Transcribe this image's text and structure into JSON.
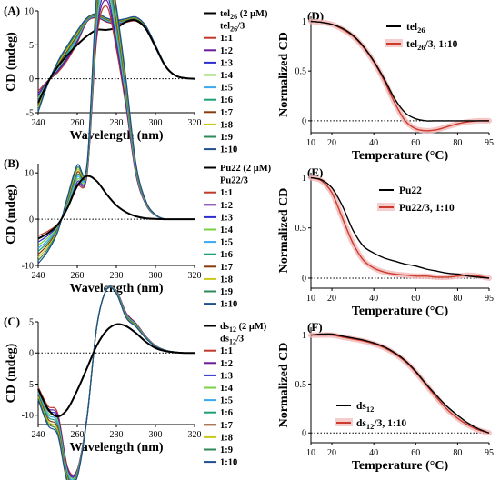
{
  "colors": {
    "black": "#000000",
    "red": "#cc3a2b",
    "pink_band": "#f2b8b8",
    "ratio_palette": [
      "#c0392b",
      "#6a1b9a",
      "#2e2ecf",
      "#7bd146",
      "#3aa9f0",
      "#1fa07a",
      "#8a3b0e",
      "#c8c81a",
      "#2e8b57",
      "#1f4f8f"
    ]
  },
  "chart_data": [
    {
      "panel": "(A)",
      "type": "line",
      "title": "",
      "xlabel": "Wavelength (nm)",
      "ylabel": "CD (mdeg)",
      "xlim": [
        240,
        320
      ],
      "ylim": [
        -5,
        10
      ],
      "xticks": [
        240,
        260,
        280,
        300,
        320
      ],
      "yticks": [
        -5,
        0,
        5,
        10
      ],
      "zero_line": true,
      "legend": {
        "position": "right",
        "main": {
          "base": "tel",
          "sub": "26",
          "tail": " (2 μM)"
        },
        "group": {
          "base": "tel",
          "sub": "26",
          "tail": "/3"
        },
        "ratios": [
          "1:1",
          "1:2",
          "1:3",
          "1:4",
          "1:5",
          "1:6",
          "1:7",
          "1:8",
          "1:9",
          "1:10"
        ]
      },
      "x": [
        240,
        245,
        250,
        255,
        260,
        265,
        270,
        275,
        280,
        285,
        290,
        295,
        300,
        305,
        310,
        315,
        320
      ],
      "series": [
        {
          "name": "tel26 (2 μM)",
          "values": [
            -3.5,
            -0.5,
            1.8,
            3.5,
            5.0,
            6.3,
            7.2,
            7.2,
            7.5,
            8.4,
            8.6,
            7.4,
            4.7,
            1.9,
            0.5,
            0.1,
            0.0
          ]
        }
      ],
      "ratio_ends": {
        "first": [
          -1.8,
          8.4,
          8.5
        ],
        "last": [
          -4.9,
          9.0,
          9.1
        ]
      }
    },
    {
      "panel": "(B)",
      "type": "line",
      "title": "",
      "xlabel": "Wavelength (nm)",
      "ylabel": "CD (mdeg)",
      "xlim": [
        240,
        320
      ],
      "ylim": [
        -10,
        12
      ],
      "xticks": [
        240,
        260,
        280,
        300,
        320
      ],
      "yticks": [
        -10,
        0,
        10
      ],
      "zero_line": true,
      "legend": {
        "position": "right",
        "main": {
          "base": "Pu22",
          "sub": "",
          "tail": " (2 μM)"
        },
        "group": {
          "base": "Pu22",
          "sub": "",
          "tail": "/3"
        },
        "ratios": [
          "1:1",
          "1:2",
          "1:3",
          "1:4",
          "1:5",
          "1:6",
          "1:7",
          "1:8",
          "1:9",
          "1:10"
        ]
      },
      "x": [
        240,
        245,
        250,
        255,
        260,
        265,
        270,
        275,
        280,
        285,
        290,
        295,
        300,
        305,
        310,
        315,
        320
      ],
      "series": [
        {
          "name": "Pu22 (2 μM)",
          "values": [
            -4.2,
            -3.0,
            -1.2,
            2.5,
            7.2,
            9.3,
            8.2,
            5.4,
            3.0,
            1.5,
            0.6,
            0.2,
            0.05,
            0.0,
            0.0,
            0.0,
            0.0
          ]
        }
      ],
      "ratio_ends": {
        "first": [
          -3.6,
          9.6,
          9.6
        ],
        "last": [
          -9.6,
          12.0,
          12.0
        ]
      }
    },
    {
      "panel": "(C)",
      "type": "line",
      "title": "",
      "xlabel": "Wavelength (nm)",
      "ylabel": "CD (mdeg)",
      "xlim": [
        240,
        320
      ],
      "ylim": [
        -11.5,
        5
      ],
      "xticks": [
        240,
        260,
        280,
        300,
        320
      ],
      "yticks": [
        -10,
        -5,
        0,
        5
      ],
      "zero_line": true,
      "legend": {
        "position": "right",
        "main": {
          "base": "ds",
          "sub": "12",
          "tail": " (2 μM)"
        },
        "group": {
          "base": "ds",
          "sub": "12",
          "tail": "/3"
        },
        "ratios": [
          "1:1",
          "1:2",
          "1:3",
          "1:4",
          "1:5",
          "1:6",
          "1:7",
          "1:8",
          "1:9",
          "1:10"
        ]
      },
      "x": [
        240,
        245,
        250,
        255,
        260,
        265,
        270,
        275,
        280,
        285,
        290,
        295,
        300,
        305,
        310,
        315,
        320
      ],
      "series": [
        {
          "name": "ds12 (2 μM)",
          "values": [
            -5.8,
            -9.0,
            -10.2,
            -9.0,
            -6.0,
            -2.4,
            1.2,
            3.6,
            4.6,
            4.3,
            3.2,
            1.8,
            0.8,
            0.3,
            0.1,
            0.0,
            0.0
          ]
        }
      ],
      "ratio_ends": {
        "first": [
          -5.5,
          -10.1,
          4.8
        ],
        "last": [
          -7.5,
          -10.4,
          4.2
        ]
      }
    },
    {
      "panel": "(D)",
      "type": "line",
      "title": "",
      "xlabel": "Temperature (°C)",
      "ylabel": "Normalized CD",
      "xlim": [
        10,
        95
      ],
      "ylim": [
        -0.12,
        1.05
      ],
      "xticks": [
        10,
        20,
        40,
        60,
        80,
        95
      ],
      "yticks": [
        0,
        0.5,
        1
      ],
      "ytick_labels": [
        "0",
        "0.5",
        "1"
      ],
      "zero_line": true,
      "legend": {
        "position": "top-right",
        "entries": [
          {
            "base": "tel",
            "sub": "26",
            "tail": ""
          },
          {
            "base": "tel",
            "sub": "26",
            "tail": "/3, 1:10"
          }
        ]
      },
      "series": [
        {
          "name": "tel26",
          "x": [
            10,
            15,
            20,
            25,
            30,
            35,
            40,
            45,
            50,
            55,
            60,
            65,
            70,
            75,
            80,
            85,
            90,
            95
          ],
          "values": [
            1.0,
            0.99,
            0.97,
            0.93,
            0.86,
            0.75,
            0.6,
            0.42,
            0.22,
            0.08,
            0.02,
            0.0,
            0.0,
            0.0,
            0.0,
            0.0,
            0.0,
            0.0
          ]
        },
        {
          "name": "tel26/3, 1:10",
          "x": [
            10,
            15,
            20,
            25,
            30,
            35,
            40,
            45,
            50,
            55,
            60,
            65,
            70,
            75,
            80,
            85,
            90,
            95
          ],
          "values": [
            1.0,
            0.99,
            0.97,
            0.92,
            0.85,
            0.74,
            0.59,
            0.4,
            0.18,
            0.0,
            -0.08,
            -0.1,
            -0.09,
            -0.06,
            -0.03,
            -0.01,
            0.0,
            0.0
          ]
        }
      ]
    },
    {
      "panel": "(E)",
      "type": "line",
      "title": "",
      "xlabel": "Temperature (°C)",
      "ylabel": "Normalized CD",
      "xlim": [
        10,
        95
      ],
      "ylim": [
        -0.1,
        1.05
      ],
      "xticks": [
        10,
        20,
        40,
        60,
        80,
        95
      ],
      "yticks": [
        0,
        0.5,
        1
      ],
      "ytick_labels": [
        "0",
        "0.5",
        "1"
      ],
      "zero_line": true,
      "legend": {
        "position": "top-right",
        "entries": [
          {
            "base": "Pu22",
            "sub": "",
            "tail": ""
          },
          {
            "base": "Pu22",
            "sub": "",
            "tail": "/3, 1:10"
          }
        ]
      },
      "series": [
        {
          "name": "Pu22",
          "x": [
            10,
            15,
            20,
            25,
            30,
            35,
            40,
            45,
            50,
            55,
            60,
            65,
            70,
            75,
            80,
            85,
            90,
            95
          ],
          "values": [
            1.0,
            0.98,
            0.9,
            0.72,
            0.48,
            0.32,
            0.25,
            0.2,
            0.17,
            0.14,
            0.12,
            0.09,
            0.07,
            0.05,
            0.04,
            0.02,
            0.01,
            0.0
          ]
        },
        {
          "name": "Pu22/3, 1:10",
          "x": [
            10,
            15,
            20,
            25,
            30,
            35,
            40,
            45,
            50,
            55,
            60,
            65,
            70,
            75,
            80,
            85,
            90,
            95
          ],
          "values": [
            1.0,
            0.97,
            0.85,
            0.6,
            0.35,
            0.18,
            0.1,
            0.06,
            0.04,
            0.03,
            0.02,
            0.02,
            0.01,
            0.01,
            0.02,
            0.03,
            0.02,
            0.0
          ]
        }
      ]
    },
    {
      "panel": "(F)",
      "type": "line",
      "title": "",
      "xlabel": "Temperature (°C)",
      "ylabel": "Normalized CD",
      "xlim": [
        10,
        95
      ],
      "ylim": [
        -0.1,
        1.08
      ],
      "xticks": [
        10,
        20,
        40,
        60,
        80,
        95
      ],
      "yticks": [
        0,
        0.5,
        1
      ],
      "ytick_labels": [
        "0",
        "0.5",
        "1"
      ],
      "zero_line": true,
      "legend": {
        "position": "bottom-left",
        "entries": [
          {
            "base": "ds",
            "sub": "12",
            "tail": ""
          },
          {
            "base": "ds",
            "sub": "12",
            "tail": "/3, 1:10"
          }
        ]
      },
      "series": [
        {
          "name": "ds12",
          "x": [
            10,
            15,
            20,
            25,
            30,
            35,
            40,
            45,
            50,
            55,
            60,
            65,
            70,
            75,
            80,
            85,
            90,
            95
          ],
          "values": [
            1.0,
            1.01,
            1.01,
            0.99,
            0.97,
            0.95,
            0.92,
            0.88,
            0.82,
            0.74,
            0.63,
            0.5,
            0.38,
            0.27,
            0.18,
            0.1,
            0.04,
            0.0
          ]
        },
        {
          "name": "ds12/3, 1:10",
          "x": [
            10,
            15,
            20,
            25,
            30,
            35,
            40,
            45,
            50,
            55,
            60,
            65,
            70,
            75,
            80,
            85,
            90,
            95
          ],
          "values": [
            1.0,
            1.0,
            1.0,
            0.98,
            0.96,
            0.94,
            0.91,
            0.87,
            0.81,
            0.73,
            0.62,
            0.49,
            0.36,
            0.24,
            0.15,
            0.08,
            0.03,
            0.0
          ]
        }
      ]
    }
  ]
}
